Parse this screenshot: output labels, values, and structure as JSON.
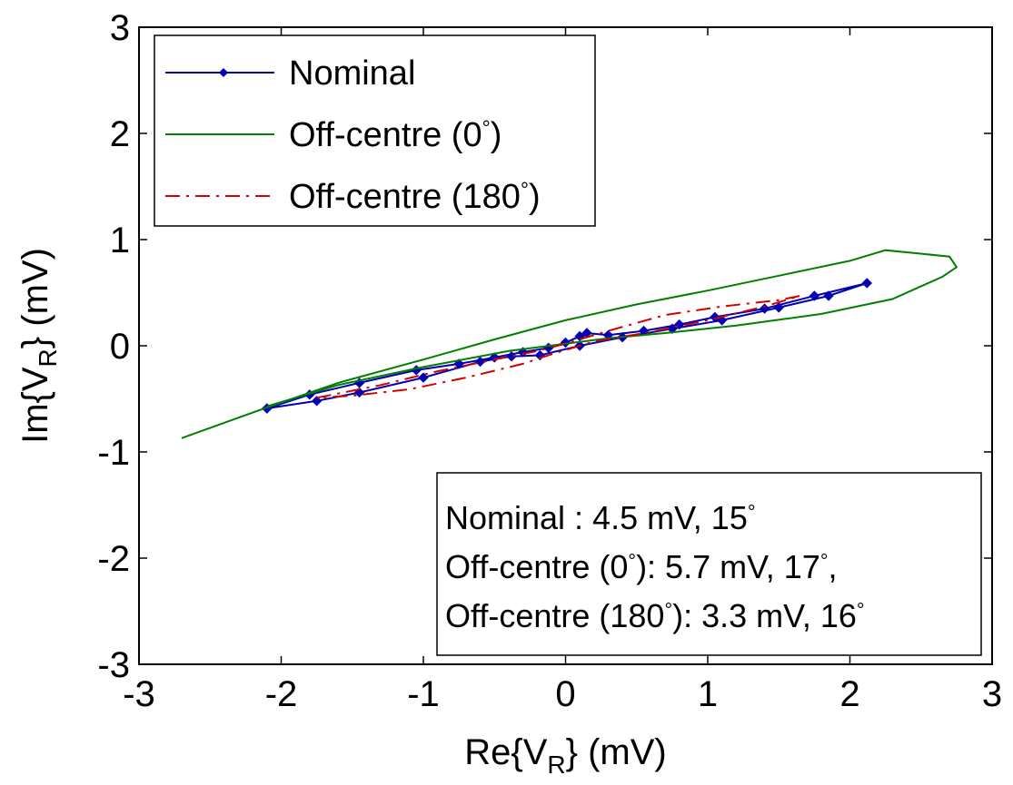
{
  "chart_data": {
    "type": "line",
    "xlabel": "Re{V_R} (mV)",
    "ylabel": "Im{V_R} (mV)",
    "xlim": [
      -3,
      3
    ],
    "ylim": [
      -3,
      3
    ],
    "xticks": [
      "-3",
      "-2",
      "-1",
      "0",
      "1",
      "2",
      "3"
    ],
    "yticks": [
      "-3",
      "-2",
      "-1",
      "0",
      "1",
      "2",
      "3"
    ],
    "grid": false,
    "legend_position": "top-left",
    "series": [
      {
        "name": "Nominal",
        "color": "#0000b4",
        "style": "solid-with-diamond-markers",
        "x": [
          -2.1,
          -1.8,
          -1.45,
          -1.05,
          -0.75,
          -0.5,
          -0.3,
          -0.12,
          0.0,
          0.1,
          0.15,
          0.3,
          0.55,
          0.8,
          1.05,
          1.4,
          1.75,
          2.12,
          1.85,
          1.5,
          1.1,
          0.75,
          0.4,
          0.1,
          -0.18,
          -0.38,
          -0.6,
          -1.0,
          -1.45,
          -1.75,
          -2.1
        ],
        "y": [
          -0.59,
          -0.46,
          -0.35,
          -0.23,
          -0.17,
          -0.11,
          -0.06,
          -0.02,
          0.03,
          0.09,
          0.12,
          0.1,
          0.14,
          0.2,
          0.27,
          0.35,
          0.47,
          0.59,
          0.47,
          0.36,
          0.24,
          0.16,
          0.08,
          0.0,
          -0.09,
          -0.1,
          -0.15,
          -0.3,
          -0.44,
          -0.52,
          -0.59
        ]
      },
      {
        "name": "Off-centre (0°)",
        "color": "#007f00",
        "style": "solid",
        "x": [
          -2.7,
          -2.1,
          -1.6,
          -1.0,
          -0.5,
          0.0,
          0.5,
          1.0,
          1.5,
          2.0,
          2.25,
          2.7,
          2.75,
          2.65,
          2.3,
          1.8,
          1.2,
          0.7,
          0.3,
          0.0,
          -0.4,
          -1.0,
          -1.6,
          -2.1
        ],
        "y": [
          -0.87,
          -0.58,
          -0.35,
          -0.13,
          0.06,
          0.24,
          0.39,
          0.52,
          0.66,
          0.8,
          0.9,
          0.84,
          0.74,
          0.65,
          0.44,
          0.3,
          0.19,
          0.12,
          0.07,
          0.02,
          -0.05,
          -0.2,
          -0.37,
          -0.57
        ]
      },
      {
        "name": "Off-centre (180°)",
        "color": "#d20000",
        "style": "dash-dot",
        "x": [
          -1.75,
          -1.3,
          -0.9,
          -0.5,
          -0.2,
          0.0,
          0.3,
          0.7,
          1.1,
          1.5,
          1.65,
          1.4,
          1.0,
          0.6,
          0.2,
          -0.1,
          -0.3,
          -0.7,
          -1.1,
          -1.5,
          -1.75
        ],
        "y": [
          -0.49,
          -0.37,
          -0.24,
          -0.13,
          -0.05,
          0.02,
          0.14,
          0.29,
          0.37,
          0.43,
          0.47,
          0.37,
          0.24,
          0.13,
          0.04,
          -0.08,
          -0.17,
          -0.3,
          -0.41,
          -0.47,
          -0.49
        ]
      }
    ],
    "legend": [
      {
        "label": "Nominal",
        "color": "#0000b4",
        "style": "solid-with-diamond-markers"
      },
      {
        "label": "Off-centre (0°)",
        "color": "#007f00",
        "style": "solid"
      },
      {
        "label": "Off-centre (180°)",
        "color": "#d20000",
        "style": "dash-dot"
      }
    ],
    "annotation": {
      "position": "bottom-right",
      "lines": [
        "Nominal : 4.5 mV, 15°",
        "Off-centre (0°): 5.7 mV, 17°,",
        "Off-centre (180°): 3.3 mV, 16°"
      ]
    }
  }
}
